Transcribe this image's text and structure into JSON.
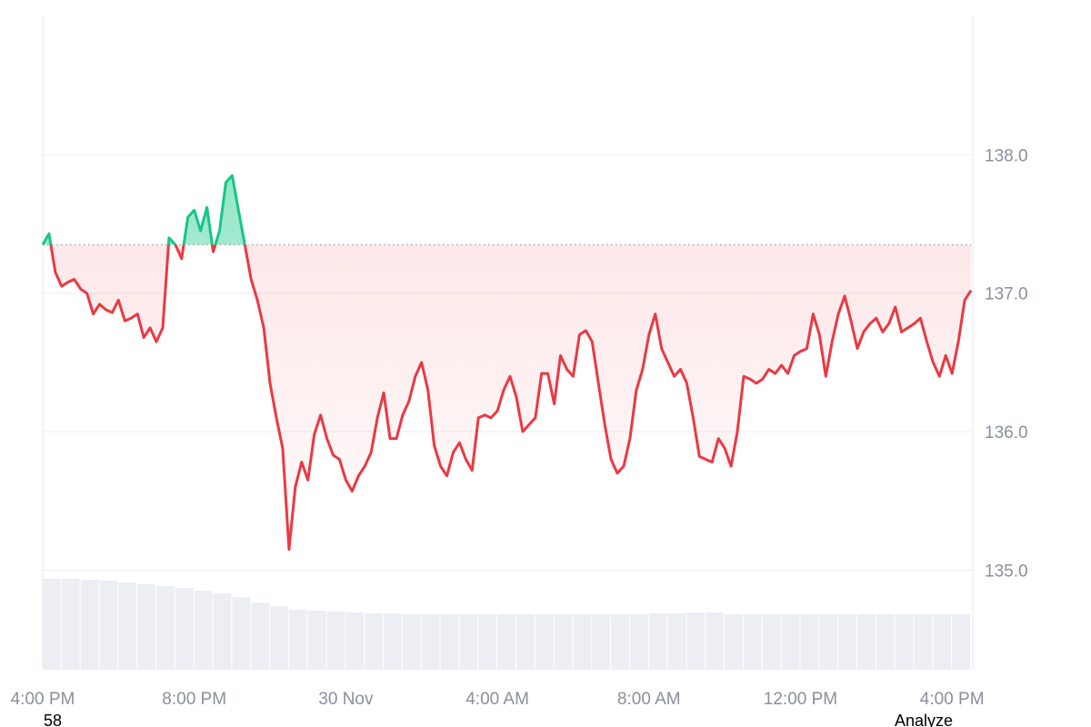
{
  "chart_data": {
    "type": "line",
    "values": [
      137.35,
      137.43,
      137.15,
      137.05,
      137.08,
      137.1,
      137.03,
      137.0,
      136.85,
      136.92,
      136.88,
      136.86,
      136.95,
      136.8,
      136.82,
      136.85,
      136.68,
      136.75,
      136.65,
      136.75,
      137.4,
      137.35,
      137.25,
      137.55,
      137.6,
      137.45,
      137.62,
      137.3,
      137.45,
      137.8,
      137.85,
      137.6,
      137.35,
      137.1,
      136.95,
      136.75,
      136.35,
      136.1,
      135.88,
      135.15,
      135.6,
      135.78,
      135.65,
      135.98,
      136.12,
      135.95,
      135.83,
      135.8,
      135.65,
      135.57,
      135.68,
      135.75,
      135.85,
      136.1,
      136.28,
      135.95,
      135.95,
      136.12,
      136.22,
      136.4,
      136.5,
      136.3,
      135.9,
      135.75,
      135.68,
      135.85,
      135.92,
      135.8,
      135.72,
      136.1,
      136.12,
      136.1,
      136.15,
      136.3,
      136.4,
      136.25,
      136.0,
      136.05,
      136.1,
      136.42,
      136.42,
      136.2,
      136.55,
      136.45,
      136.4,
      136.7,
      136.73,
      136.65,
      136.35,
      136.05,
      135.8,
      135.7,
      135.75,
      135.95,
      136.3,
      136.45,
      136.7,
      136.85,
      136.6,
      136.5,
      136.4,
      136.45,
      136.35,
      136.1,
      135.82,
      135.8,
      135.78,
      135.95,
      135.88,
      135.75,
      136.0,
      136.4,
      136.38,
      136.35,
      136.38,
      136.45,
      136.42,
      136.48,
      136.42,
      136.55,
      136.58,
      136.6,
      136.85,
      136.7,
      136.4,
      136.65,
      136.85,
      136.98,
      136.8,
      136.6,
      136.72,
      136.78,
      136.82,
      136.72,
      136.78,
      136.9,
      136.72,
      136.75,
      136.78,
      136.82,
      136.65,
      136.5,
      136.4,
      136.55,
      136.42,
      136.65,
      136.95,
      137.02
    ],
    "baseline": 137.35,
    "up_color": "#16c784",
    "down_color": "#ea3943",
    "xlim": [
      0,
      147
    ],
    "xticks": [
      {
        "value": 0,
        "label": "4:00 PM"
      },
      {
        "value": 24,
        "label": "8:00 PM"
      },
      {
        "value": 48,
        "label": "30 Nov"
      },
      {
        "value": 72,
        "label": "4:00 AM"
      },
      {
        "value": 96,
        "label": "8:00 AM"
      },
      {
        "value": 120,
        "label": "12:00 PM"
      },
      {
        "value": 144,
        "label": "4:00 PM"
      }
    ],
    "ylim": [
      134.28,
      139.0
    ],
    "yticks": [
      {
        "value": 135,
        "label": "135.0"
      },
      {
        "value": 136,
        "label": "136.0"
      },
      {
        "value": 137,
        "label": "137.0"
      },
      {
        "value": 138,
        "label": "138.0"
      }
    ],
    "grid": true,
    "volume": {
      "color": "#eceef3",
      "values": [
        100,
        100,
        99,
        98,
        96,
        94,
        92,
        90,
        87,
        84,
        80,
        74,
        70,
        66,
        65,
        64,
        63,
        62,
        62,
        61,
        61,
        61,
        61,
        61,
        61,
        61,
        61,
        61,
        61,
        61,
        61,
        61,
        62,
        62,
        63,
        63,
        61,
        61,
        61,
        61,
        61,
        61,
        61,
        61,
        61,
        61,
        61,
        61,
        61
      ]
    }
  },
  "footer": {
    "left": "58",
    "right": "Analyze"
  }
}
